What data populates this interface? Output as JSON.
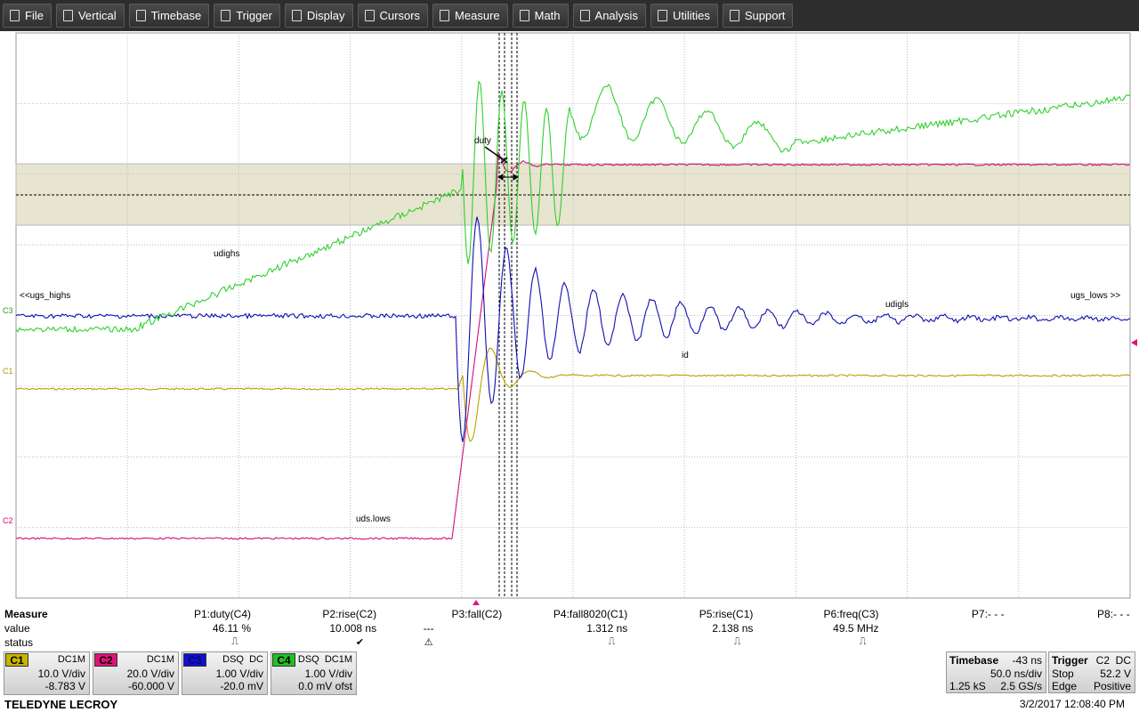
{
  "menu": [
    "File",
    "Vertical",
    "Timebase",
    "Trigger",
    "Display",
    "Cursors",
    "Measure",
    "Math",
    "Analysis",
    "Utilities",
    "Support"
  ],
  "trace_labels": {
    "duty": "duty",
    "udighs": "udighs",
    "ugs_highs": "<<ugs_highs",
    "ugs_lows": "ugs_lows >>",
    "udigls": "udigls",
    "id": "id",
    "uds_lows": "uds.lows"
  },
  "markers": {
    "c3": "C3",
    "c1": "C1",
    "c2": "C2"
  },
  "measure": {
    "title": "Measure",
    "rows": [
      "value",
      "status"
    ],
    "params": [
      {
        "name": "P1:duty(C4)",
        "value": "46.11 %",
        "status": "⎍"
      },
      {
        "name": "P2:rise(C2)",
        "value": "10.008 ns",
        "status": "✔"
      },
      {
        "name": "P3:fall(C2)",
        "value": "---",
        "status": "⚠"
      },
      {
        "name": "P4:fall8020(C1)",
        "value": "1.312 ns",
        "status": "⎍"
      },
      {
        "name": "P5:rise(C1)",
        "value": "2.138 ns",
        "status": "⎍"
      },
      {
        "name": "P6:freq(C3)",
        "value": "49.5 MHz",
        "status": "⎍"
      },
      {
        "name": "P7:- - -"
      },
      {
        "name": "P8:- - -"
      }
    ]
  },
  "channels": [
    {
      "label": "C1",
      "coupling": "DC1M",
      "scale": "10.0 V/div",
      "offset": "-8.783 V"
    },
    {
      "label": "C2",
      "coupling": "DC1M",
      "scale": "20.0 V/div",
      "offset": "-60.000 V"
    },
    {
      "label": "C3",
      "coupling": "DSQ  DC",
      "scale": "1.00 V/div",
      "offset": "-20.0 mV"
    },
    {
      "label": "C4",
      "coupling": "DSQ  DC1M",
      "scale": "1.00 V/div",
      "offset": "0.0 mV ofst"
    }
  ],
  "timebase": {
    "title": "Timebase",
    "delay": "-43 ns",
    "scale": "50.0 ns/div",
    "samples": "1.25 kS",
    "rate": "2.5 GS/s"
  },
  "trigger": {
    "title": "Trigger",
    "source": "C2  DC",
    "mode": "Stop",
    "level": "52.2 V",
    "type": "Edge",
    "slope": "Positive"
  },
  "footer": {
    "brand": "TELEDYNE LECROY",
    "datetime": "3/2/2017 12:08:40 PM"
  }
}
